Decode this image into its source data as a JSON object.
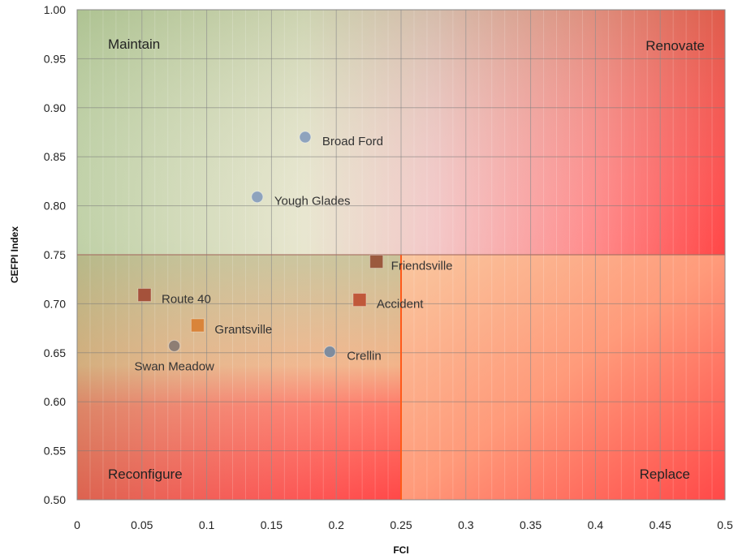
{
  "chart_data": {
    "type": "scatter",
    "title": "",
    "xlabel": "FCI",
    "ylabel": "CEFPI Index",
    "xlim": [
      0,
      0.5
    ],
    "ylim": [
      0.5,
      1.0
    ],
    "x_ticks": [
      "0",
      "0.05",
      "0.1",
      "0.15",
      "0.2",
      "0.25",
      "0.3",
      "0.35",
      "0.4",
      "0.45",
      "0.5"
    ],
    "y_ticks": [
      "0.50",
      "0.55",
      "0.60",
      "0.65",
      "0.70",
      "0.75",
      "0.80",
      "0.85",
      "0.90",
      "0.95",
      "1.00"
    ],
    "grid": true,
    "threshold_x": 0.25,
    "threshold_y": 0.75,
    "quadrants": {
      "top_left": "Maintain",
      "top_right": "Renovate",
      "bottom_left": "Reconfigure",
      "bottom_right": "Replace"
    },
    "colors": {
      "good": "#b7c99a",
      "bad": "#ff4a4a",
      "mid": "#f3c9a6",
      "circle_marker": "#8ea3bd",
      "square_marker_dark": "#b05a3c",
      "square_marker_light": "#d9843a"
    },
    "points": [
      {
        "name": "Broad Ford",
        "x": 0.176,
        "y": 0.87,
        "marker": "circle",
        "color": "#8ea3bd",
        "label_pos": "right"
      },
      {
        "name": "Yough Glades",
        "x": 0.139,
        "y": 0.809,
        "marker": "circle",
        "color": "#8ea3bd",
        "label_pos": "right"
      },
      {
        "name": "Friendsville",
        "x": 0.231,
        "y": 0.743,
        "marker": "square",
        "color": "#9b5a3e",
        "label_pos": "right-below"
      },
      {
        "name": "Route 40",
        "x": 0.052,
        "y": 0.709,
        "marker": "square",
        "color": "#a5523b",
        "label_pos": "right"
      },
      {
        "name": "Accident",
        "x": 0.218,
        "y": 0.704,
        "marker": "square",
        "color": "#c0583a",
        "label_pos": "right"
      },
      {
        "name": "Grantsville",
        "x": 0.093,
        "y": 0.678,
        "marker": "square",
        "color": "#d9843a",
        "label_pos": "right"
      },
      {
        "name": "Swan Meadow",
        "x": 0.075,
        "y": 0.657,
        "marker": "circle",
        "color": "#8e7e74",
        "label_pos": "below"
      },
      {
        "name": "Crellin",
        "x": 0.195,
        "y": 0.651,
        "marker": "circle",
        "color": "#7e8c9e",
        "label_pos": "right"
      }
    ]
  }
}
